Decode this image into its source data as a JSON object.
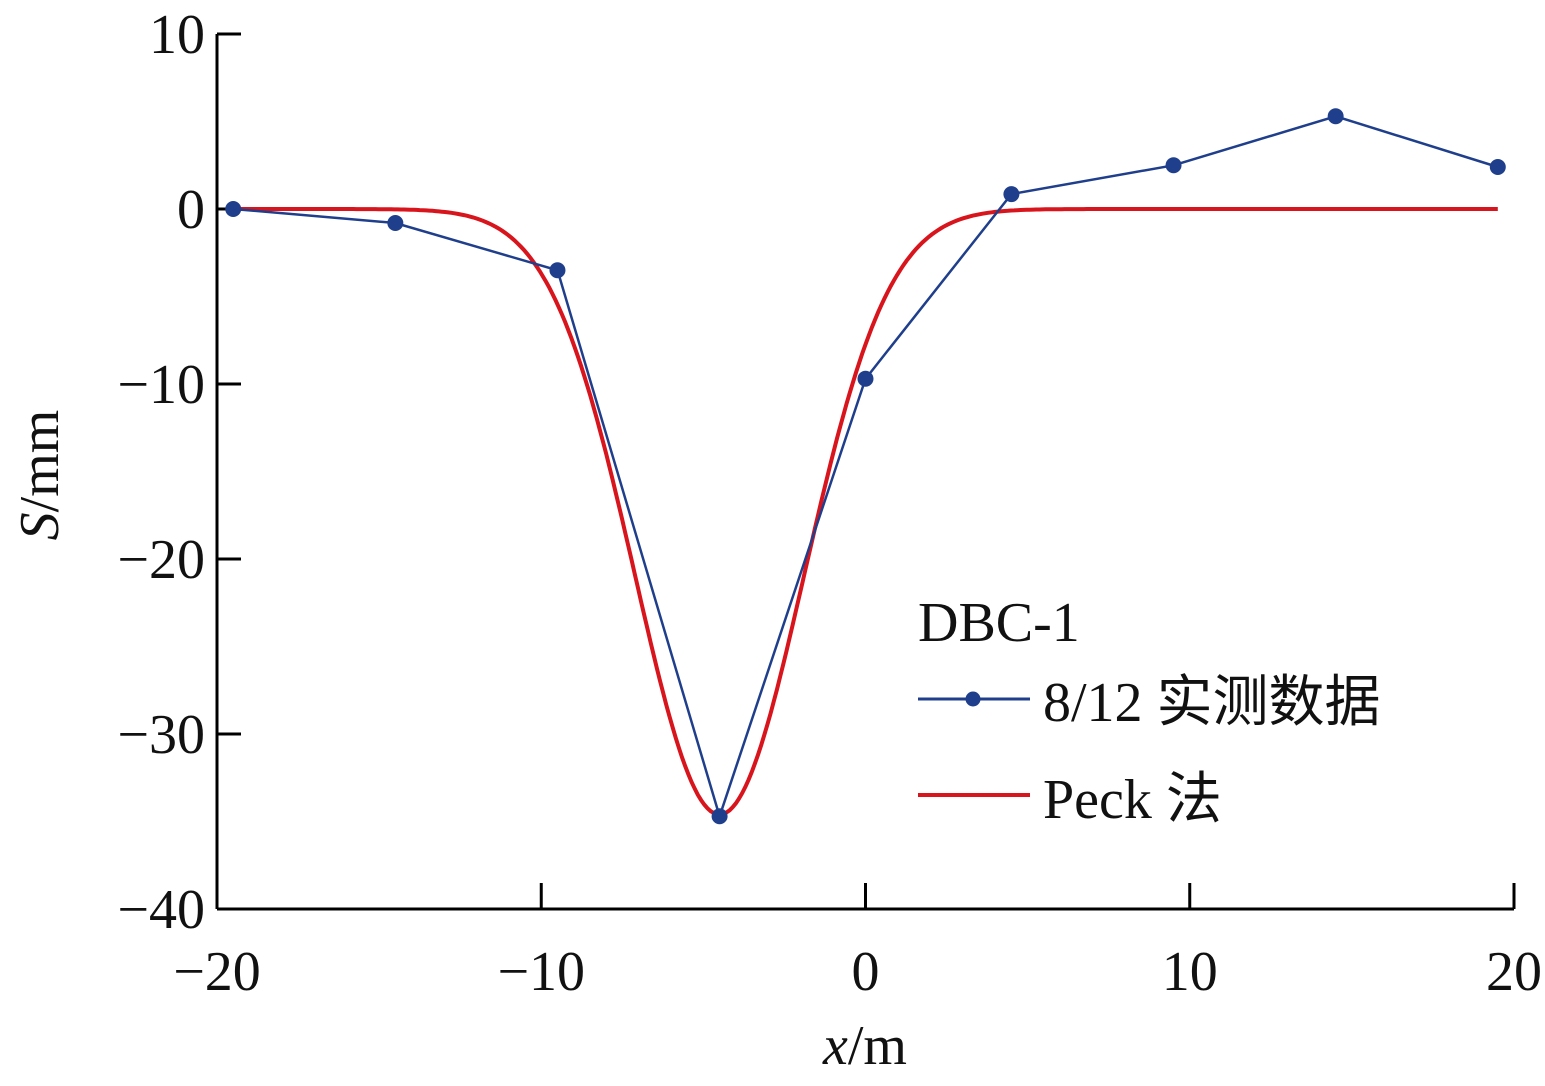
{
  "chart_data": {
    "type": "line",
    "title": "",
    "xlabel": "x/m",
    "xlabel_var": "x",
    "xlabel_unit": "/m",
    "ylabel": "S/mm",
    "ylabel_var": "S",
    "ylabel_unit": "/mm",
    "xlim": [
      -20,
      20
    ],
    "ylim": [
      -40,
      10
    ],
    "xticks": [
      -20,
      -10,
      0,
      10,
      20
    ],
    "xtick_labels": [
      "−20",
      "−10",
      "0",
      "10",
      "20"
    ],
    "yticks": [
      10,
      0,
      -10,
      -20,
      -30,
      -40
    ],
    "ytick_labels": [
      "10",
      "0",
      "−10",
      "−20",
      "−30",
      "−40"
    ],
    "grid": false,
    "legend": {
      "title": "DBC-1",
      "placement": "bottom-right",
      "entries": [
        "8/12 实测数据",
        "Peck 法"
      ]
    },
    "series": [
      {
        "name": "8/12 实测数据",
        "color": "#1f3f8c",
        "marker": "circle",
        "x": [
          -19.5,
          -14.5,
          -9.5,
          -4.5,
          0,
          4.5,
          9.5,
          14.5,
          19.5
        ],
        "y": [
          0,
          -0.8,
          -3.5,
          -34.7,
          -9.7,
          0.85,
          2.5,
          5.3,
          2.4
        ]
      },
      {
        "name": "Peck 法",
        "color": "#d8141c",
        "model": "gaussian",
        "smax": -34.6,
        "center": -4.5,
        "i": 2.6,
        "x_range": [
          -19.5,
          19.5
        ]
      }
    ]
  }
}
